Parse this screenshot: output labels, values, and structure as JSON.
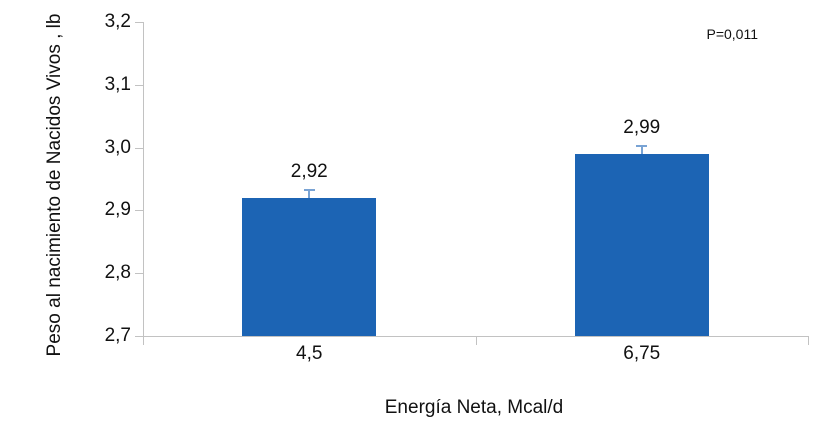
{
  "chart_data": {
    "type": "bar",
    "title": "",
    "xlabel": "Energía Neta, Mcal/d",
    "ylabel": "Peso al nacimiento de Nacidos Vivos , lb",
    "p_annotation": "P=0,011",
    "ylim": [
      2.7,
      3.2
    ],
    "y_tick_step": 0.1,
    "y_ticks": [
      {
        "value": 2.7,
        "label": "2,7"
      },
      {
        "value": 2.8,
        "label": "2,8"
      },
      {
        "value": 2.9,
        "label": "2,9"
      },
      {
        "value": 3.0,
        "label": "3,0"
      },
      {
        "value": 3.1,
        "label": "3,1"
      },
      {
        "value": 3.2,
        "label": "3,2"
      }
    ],
    "categories": [
      "4,5",
      "6,75"
    ],
    "values": [
      2.92,
      2.99
    ],
    "value_labels": [
      "2,92",
      "2,99"
    ],
    "errors": [
      0.012,
      0.012
    ],
    "grid": false,
    "legend": "none",
    "decimal_separator": ",",
    "colors": {
      "bar": "#1C64B4",
      "error_bar": "#79A3D4",
      "axis": "#C2C2C2",
      "text": "#111111"
    }
  }
}
